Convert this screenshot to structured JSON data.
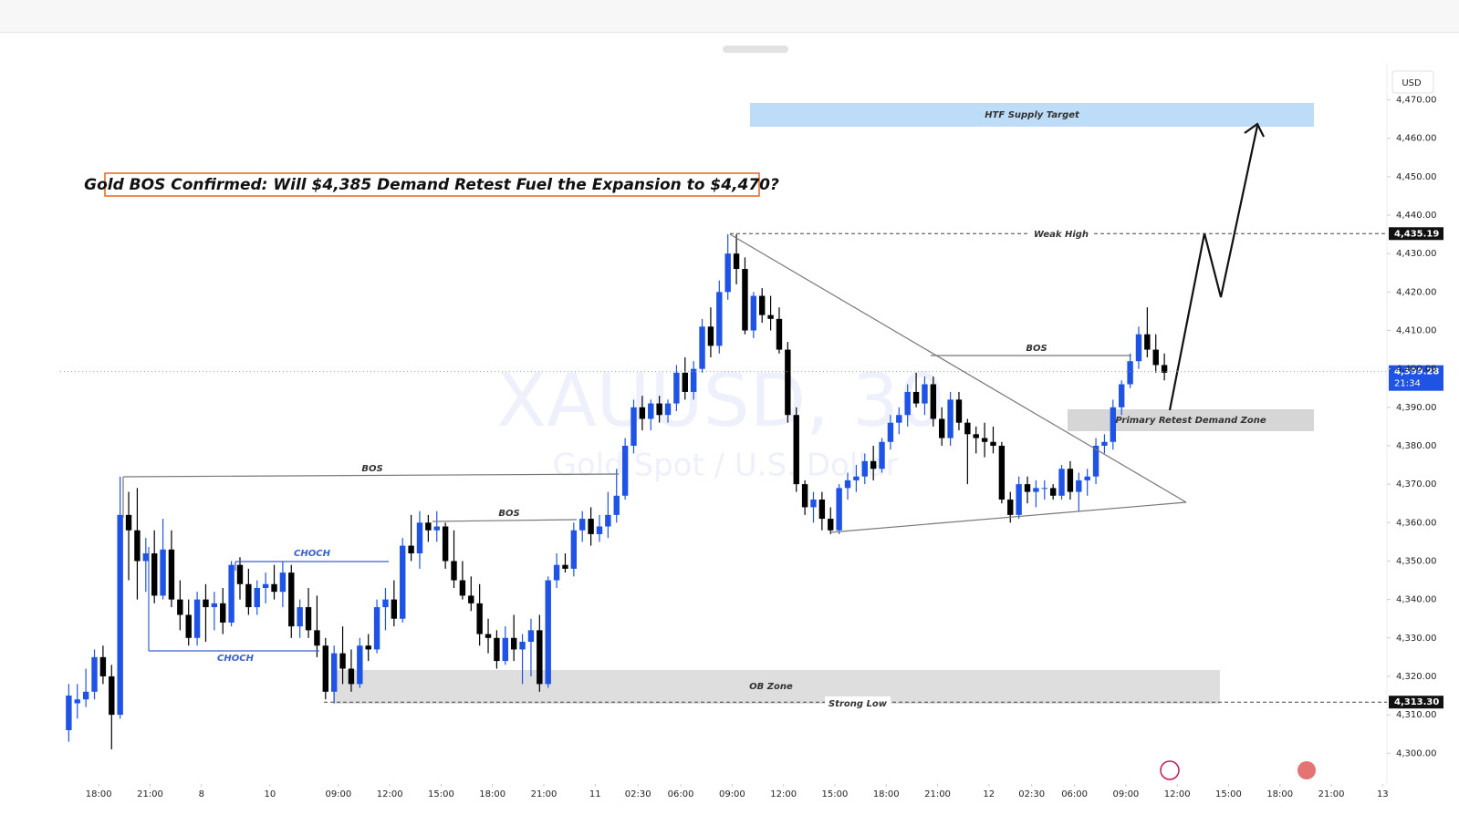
{
  "chart_data": {
    "type": "candlestick",
    "title": "Gold BOS Confirmed: Will $4,385 Demand Retest Fuel the Expansion to $4,470?",
    "symbol": "XAUUSD, 30",
    "symbol_description": "Gold Spot / U.S. Dollar",
    "currency": "USD",
    "up_color": "#1e53e5",
    "down_color": "#000000",
    "grid": false,
    "ylim": [
      4292,
      4477
    ],
    "yticks": [
      {
        "value": 4300,
        "label": "4,300.00"
      },
      {
        "value": 4310,
        "label": "4,310.00"
      },
      {
        "value": 4320,
        "label": "4,320.00"
      },
      {
        "value": 4330,
        "label": "4,330.00"
      },
      {
        "value": 4340,
        "label": "4,340.00"
      },
      {
        "value": 4350,
        "label": "4,350.00"
      },
      {
        "value": 4360,
        "label": "4,360.00"
      },
      {
        "value": 4370,
        "label": "4,370.00"
      },
      {
        "value": 4380,
        "label": "4,380.00"
      },
      {
        "value": 4390,
        "label": "4,390.00"
      },
      {
        "value": 4400,
        "label": "4,400.00"
      },
      {
        "value": 4410,
        "label": "4,410.00"
      },
      {
        "value": 4420,
        "label": "4,420.00"
      },
      {
        "value": 4430,
        "label": "4,430.00"
      },
      {
        "value": 4440,
        "label": "4,440.00"
      },
      {
        "value": 4450,
        "label": "4,450.00"
      },
      {
        "value": 4460,
        "label": "4,460.00"
      },
      {
        "value": 4470,
        "label": "4,470.00"
      }
    ],
    "xlim": [
      -1,
      154
    ],
    "xticks": [
      {
        "value": 3.5,
        "label": "18:00"
      },
      {
        "value": 9.5,
        "label": "21:00"
      },
      {
        "value": 15.5,
        "label": "8"
      },
      {
        "value": 23.5,
        "label": "10"
      },
      {
        "value": 31.5,
        "label": "09:00"
      },
      {
        "value": 37.5,
        "label": "12:00"
      },
      {
        "value": 43.5,
        "label": "15:00"
      },
      {
        "value": 49.5,
        "label": "18:00"
      },
      {
        "value": 55.5,
        "label": "21:00"
      },
      {
        "value": 61.5,
        "label": "11"
      },
      {
        "value": 66.5,
        "label": "02:30"
      },
      {
        "value": 71.5,
        "label": "06:00"
      },
      {
        "value": 77.5,
        "label": "09:00"
      },
      {
        "value": 83.5,
        "label": "12:00"
      },
      {
        "value": 89.5,
        "label": "15:00"
      },
      {
        "value": 95.5,
        "label": "18:00"
      },
      {
        "value": 101.5,
        "label": "21:00"
      },
      {
        "value": 107.5,
        "label": "12"
      },
      {
        "value": 112.5,
        "label": "02:30"
      },
      {
        "value": 117.5,
        "label": "06:00"
      },
      {
        "value": 123.5,
        "label": "09:00"
      },
      {
        "value": 129.5,
        "label": "12:00"
      },
      {
        "value": 135.5,
        "label": "15:00"
      },
      {
        "value": 141.5,
        "label": "18:00"
      },
      {
        "value": 147.5,
        "label": "21:00"
      },
      {
        "value": 153.5,
        "label": "13"
      }
    ],
    "price_lines": [
      {
        "value": 4435.19,
        "label": "4,435.19"
      },
      {
        "value": 4313.3,
        "label": "4,313.30"
      },
      {
        "value": 4399.28,
        "label": "4,399.28",
        "countdown": "21:34"
      }
    ],
    "annotations": {
      "supply": "HTF Supply Target",
      "weak_high": "Weak High",
      "bos_1": "BOS",
      "bos_2": "BOS",
      "bos_3": "BOS",
      "choch_1": "CHOCH",
      "choch_2": "CHOCH",
      "demand": "Primary Retest Demand Zone",
      "ob": "OB Zone",
      "strong_low": "Strong Low"
    },
    "candles": [
      [
        4306,
        4318,
        4303,
        4315
      ],
      [
        4313,
        4318,
        4309,
        4314
      ],
      [
        4314,
        4322,
        4312,
        4316
      ],
      [
        4316,
        4327,
        4314,
        4325
      ],
      [
        4325,
        4328,
        4318,
        4320
      ],
      [
        4320,
        4323,
        4301,
        4310
      ],
      [
        4310,
        4372,
        4309,
        4362
      ],
      [
        4362,
        4368,
        4345,
        4358
      ],
      [
        4358,
        4369,
        4340,
        4350
      ],
      [
        4350,
        4356,
        4342,
        4352
      ],
      [
        4352,
        4358,
        4339,
        4341
      ],
      [
        4341,
        4361,
        4340,
        4353
      ],
      [
        4353,
        4358,
        4338,
        4340
      ],
      [
        4340,
        4345,
        4332,
        4336
      ],
      [
        4336,
        4340,
        4328,
        4330
      ],
      [
        4330,
        4342,
        4328,
        4340
      ],
      [
        4340,
        4344,
        4329,
        4338
      ],
      [
        4338,
        4342,
        4332,
        4339
      ],
      [
        4339,
        4343,
        4331,
        4334
      ],
      [
        4334,
        4350,
        4333,
        4349
      ],
      [
        4349,
        4351,
        4340,
        4344
      ],
      [
        4344,
        4348,
        4336,
        4338
      ],
      [
        4338,
        4345,
        4336,
        4343
      ],
      [
        4343,
        4347,
        4339,
        4344
      ],
      [
        4344,
        4349,
        4340,
        4342
      ],
      [
        4342,
        4350,
        4338,
        4347
      ],
      [
        4347,
        4349,
        4330,
        4333
      ],
      [
        4333,
        4340,
        4330,
        4338
      ],
      [
        4338,
        4343,
        4330,
        4332
      ],
      [
        4332,
        4341,
        4325,
        4328
      ],
      [
        4328,
        4330,
        4314,
        4316
      ],
      [
        4316,
        4328,
        4313,
        4326
      ],
      [
        4326,
        4333,
        4318,
        4322
      ],
      [
        4322,
        4327,
        4316,
        4318
      ],
      [
        4318,
        4330,
        4317,
        4328
      ],
      [
        4328,
        4331,
        4324,
        4327
      ],
      [
        4327,
        4340,
        4326,
        4338
      ],
      [
        4338,
        4343,
        4332,
        4340
      ],
      [
        4340,
        4345,
        4333,
        4335
      ],
      [
        4335,
        4356,
        4334,
        4354
      ],
      [
        4354,
        4362,
        4350,
        4352
      ],
      [
        4352,
        4363,
        4348,
        4360
      ],
      [
        4360,
        4362,
        4355,
        4358
      ],
      [
        4358,
        4363,
        4355,
        4359
      ],
      [
        4359,
        4360,
        4348,
        4350
      ],
      [
        4350,
        4358,
        4343,
        4345
      ],
      [
        4345,
        4350,
        4340,
        4341
      ],
      [
        4341,
        4346,
        4337,
        4339
      ],
      [
        4339,
        4344,
        4328,
        4331
      ],
      [
        4331,
        4335,
        4326,
        4330
      ],
      [
        4330,
        4332,
        4322,
        4324
      ],
      [
        4324,
        4333,
        4323,
        4330
      ],
      [
        4330,
        4336,
        4324,
        4327
      ],
      [
        4327,
        4331,
        4318,
        4329
      ],
      [
        4329,
        4335,
        4320,
        4332
      ],
      [
        4332,
        4336,
        4316,
        4318
      ],
      [
        4318,
        4346,
        4317,
        4345
      ],
      [
        4345,
        4352,
        4343,
        4349
      ],
      [
        4349,
        4352,
        4347,
        4348
      ],
      [
        4348,
        4360,
        4346,
        4358
      ],
      [
        4358,
        4363,
        4355,
        4361
      ],
      [
        4361,
        4364,
        4354,
        4357
      ],
      [
        4357,
        4362,
        4355,
        4359
      ],
      [
        4359,
        4368,
        4356,
        4362
      ],
      [
        4362,
        4374,
        4360,
        4367
      ],
      [
        4367,
        4382,
        4366,
        4380
      ],
      [
        4380,
        4392,
        4378,
        4390
      ],
      [
        4390,
        4393,
        4384,
        4387
      ],
      [
        4387,
        4392,
        4384,
        4391
      ],
      [
        4391,
        4393,
        4386,
        4388
      ],
      [
        4388,
        4392,
        4386,
        4391
      ],
      [
        4391,
        4401,
        4389,
        4399
      ],
      [
        4399,
        4403,
        4392,
        4394
      ],
      [
        4394,
        4402,
        4392,
        4400
      ],
      [
        4400,
        4413,
        4399,
        4411
      ],
      [
        4411,
        4416,
        4403,
        4406
      ],
      [
        4406,
        4423,
        4404,
        4420
      ],
      [
        4420,
        4435,
        4418,
        4430
      ],
      [
        4430,
        4435,
        4422,
        4426
      ],
      [
        4426,
        4429,
        4409,
        4410
      ],
      [
        4410,
        4420,
        4408,
        4419
      ],
      [
        4419,
        4421,
        4412,
        4414
      ],
      [
        4414,
        4419,
        4410,
        4413
      ],
      [
        4413,
        4416,
        4404,
        4405
      ],
      [
        4405,
        4407,
        4386,
        4388
      ],
      [
        4388,
        4390,
        4368,
        4370
      ],
      [
        4370,
        4371,
        4362,
        4364
      ],
      [
        4364,
        4368,
        4360,
        4366
      ],
      [
        4366,
        4368,
        4358,
        4361
      ],
      [
        4361,
        4364,
        4357,
        4358
      ],
      [
        4358,
        4370,
        4357,
        4369
      ],
      [
        4369,
        4373,
        4366,
        4371
      ],
      [
        4371,
        4375,
        4368,
        4372
      ],
      [
        4372,
        4378,
        4370,
        4376
      ],
      [
        4376,
        4380,
        4371,
        4374
      ],
      [
        4374,
        4382,
        4373,
        4381
      ],
      [
        4381,
        4388,
        4379,
        4386
      ],
      [
        4386,
        4390,
        4383,
        4388
      ],
      [
        4388,
        4396,
        4385,
        4394
      ],
      [
        4394,
        4399,
        4390,
        4391
      ],
      [
        4391,
        4398,
        4388,
        4396
      ],
      [
        4396,
        4398,
        4385,
        4387
      ],
      [
        4387,
        4390,
        4380,
        4382
      ],
      [
        4382,
        4394,
        4380,
        4392
      ],
      [
        4392,
        4394,
        4384,
        4386
      ],
      [
        4386,
        4387,
        4370,
        4383
      ],
      [
        4383,
        4385,
        4378,
        4382
      ],
      [
        4382,
        4386,
        4377,
        4381
      ],
      [
        4381,
        4385,
        4378,
        4380
      ],
      [
        4380,
        4381,
        4365,
        4366
      ],
      [
        4366,
        4368,
        4360,
        4362
      ],
      [
        4362,
        4372,
        4361,
        4370
      ],
      [
        4370,
        4372,
        4365,
        4368
      ],
      [
        4368,
        4371,
        4364,
        4369
      ],
      [
        4369,
        4371,
        4366,
        4369
      ],
      [
        4369,
        4370,
        4366,
        4367
      ],
      [
        4367,
        4375,
        4366,
        4374
      ],
      [
        4374,
        4376,
        4366,
        4368
      ],
      [
        4368,
        4373,
        4363,
        4371
      ],
      [
        4371,
        4374,
        4367,
        4372
      ],
      [
        4372,
        4382,
        4370,
        4380
      ],
      [
        4380,
        4383,
        4378,
        4381
      ],
      [
        4381,
        4392,
        4379,
        4390
      ],
      [
        4390,
        4397,
        4388,
        4396
      ],
      [
        4396,
        4404,
        4395,
        4402
      ],
      [
        4402,
        4411,
        4400,
        4409
      ],
      [
        4409,
        4416,
        4403,
        4405
      ],
      [
        4405,
        4409,
        4399,
        4401
      ],
      [
        4401,
        4404,
        4397,
        4399
      ]
    ]
  }
}
